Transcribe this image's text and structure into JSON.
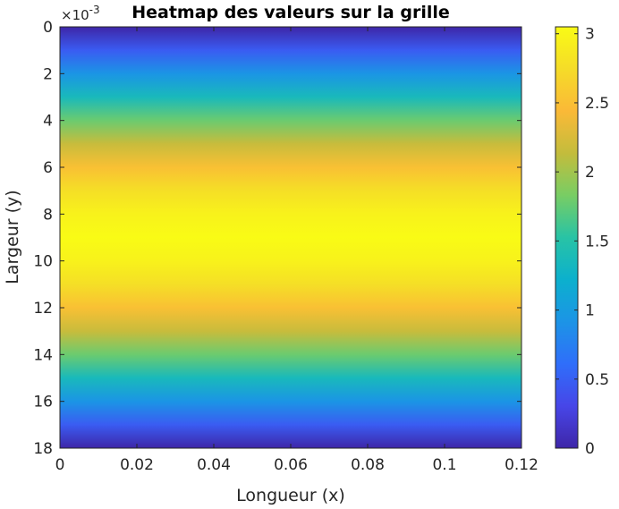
{
  "chart_data": {
    "type": "heatmap",
    "title": "Heatmap des valeurs sur la grille",
    "xlabel": "Longueur (x)",
    "ylabel": "Largeur (y)",
    "y_exponent_label": "×10",
    "y_exponent_power": "-3",
    "x_ticks": [
      "0",
      "0.02",
      "0.04",
      "0.06",
      "0.08",
      "0.1",
      "0.12"
    ],
    "x_tick_values": [
      0,
      0.02,
      0.04,
      0.06,
      0.08,
      0.1,
      0.12
    ],
    "y_ticks": [
      "0",
      "2",
      "4",
      "6",
      "8",
      "10",
      "12",
      "14",
      "16",
      "18"
    ],
    "y_tick_values": [
      0,
      2,
      4,
      6,
      8,
      10,
      12,
      14,
      16,
      18
    ],
    "xlim": [
      0,
      0.12
    ],
    "ylim": [
      0,
      18
    ],
    "y_reversed": true,
    "colormap": "parula",
    "colorbar": {
      "ticks": [
        "0",
        "0.5",
        "1",
        "1.5",
        "2",
        "2.5",
        "3"
      ],
      "tick_values": [
        0,
        0.5,
        1,
        1.5,
        2,
        2.5,
        3
      ],
      "range": [
        0,
        3.05
      ]
    },
    "profile_description": "Values vary only along y: ~0 at y=0 and y=18, rising to a maximum of ~3.05 near y=9; constant along x.",
    "y_profile": {
      "y": [
        0,
        1,
        2,
        3,
        4,
        5,
        6,
        7,
        8,
        9,
        10,
        11,
        12,
        13,
        14,
        15,
        16,
        17,
        18
      ],
      "value": [
        0.0,
        0.47,
        0.93,
        1.36,
        1.78,
        2.16,
        2.5,
        2.77,
        2.96,
        3.05,
        2.96,
        2.77,
        2.5,
        2.16,
        1.78,
        1.36,
        0.93,
        0.47,
        0.0
      ]
    }
  }
}
